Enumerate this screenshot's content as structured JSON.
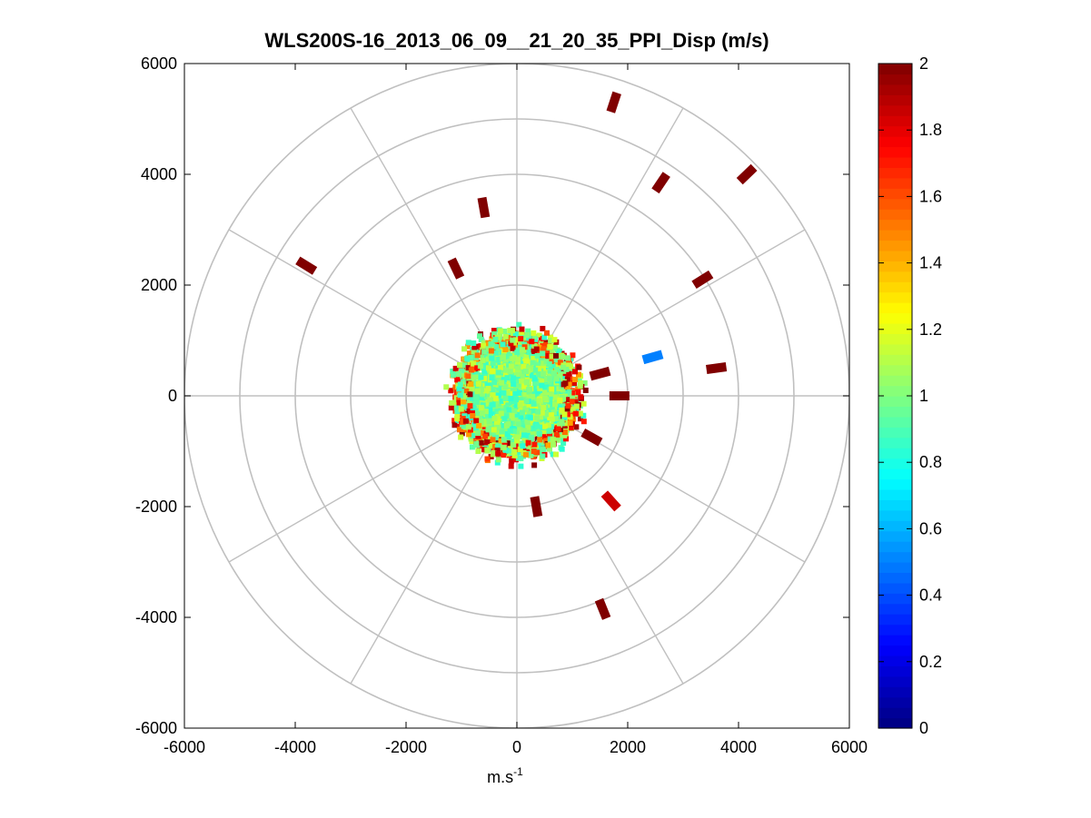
{
  "chart_data": {
    "type": "scatter",
    "subtype": "polar-ppi",
    "title": "WLS200S-16_2013_06_09__21_20_35_PPI_Disp (m/s)",
    "xlabel": "m.s",
    "xlabel_superscript": "-1",
    "ylabel": "",
    "xlim": [
      -6000,
      6000
    ],
    "ylim": [
      -6000,
      6000
    ],
    "x_ticks": [
      -6000,
      -4000,
      -2000,
      0,
      2000,
      4000,
      6000
    ],
    "y_ticks": [
      -6000,
      -4000,
      -2000,
      0,
      2000,
      4000,
      6000
    ],
    "x_tick_labels": [
      "-6000",
      "-4000",
      "-2000",
      "0",
      "2000",
      "4000",
      "6000"
    ],
    "y_tick_labels": [
      "-6000",
      "-4000",
      "-2000",
      "0",
      "2000",
      "4000",
      "6000"
    ],
    "polar_grid": {
      "rings": [
        1000,
        2000,
        3000,
        4000,
        5000,
        6000
      ],
      "spokes_deg": [
        0,
        30,
        60,
        90,
        120,
        150,
        180,
        210,
        240,
        270,
        300,
        330
      ]
    },
    "colorbar": {
      "min": 0,
      "max": 2,
      "colormap": "jet",
      "ticks": [
        0,
        0.2,
        0.4,
        0.6,
        0.8,
        1,
        1.2,
        1.4,
        1.6,
        1.8,
        2
      ],
      "tick_labels": [
        "0",
        "0.2",
        "0.4",
        "0.6",
        "0.8",
        "1",
        "1.2",
        "1.4",
        "1.6",
        "1.8",
        "2"
      ]
    },
    "central_cluster": {
      "max_range": 1200,
      "dominant_value": 1.0,
      "value_range": [
        0.8,
        2.0
      ]
    },
    "points": [
      {
        "x": 1750,
        "y": 5300,
        "value": 2.0
      },
      {
        "x": 2600,
        "y": 3850,
        "value": 2.0
      },
      {
        "x": 4150,
        "y": 4000,
        "value": 2.0
      },
      {
        "x": -600,
        "y": 3400,
        "value": 2.0
      },
      {
        "x": -1100,
        "y": 2300,
        "value": 2.0
      },
      {
        "x": -3800,
        "y": 2350,
        "value": 2.0
      },
      {
        "x": 3350,
        "y": 2100,
        "value": 2.0
      },
      {
        "x": 3600,
        "y": 500,
        "value": 2.0
      },
      {
        "x": 2450,
        "y": 700,
        "value": 0.5
      },
      {
        "x": 1700,
        "y": -1900,
        "value": 1.85
      },
      {
        "x": 1550,
        "y": -3850,
        "value": 2.0
      },
      {
        "x": 350,
        "y": -2000,
        "value": 2.0
      },
      {
        "x": 1500,
        "y": 400,
        "value": 2.0
      },
      {
        "x": 1350,
        "y": -750,
        "value": 2.0
      },
      {
        "x": 1850,
        "y": 0,
        "value": 2.0
      }
    ]
  }
}
